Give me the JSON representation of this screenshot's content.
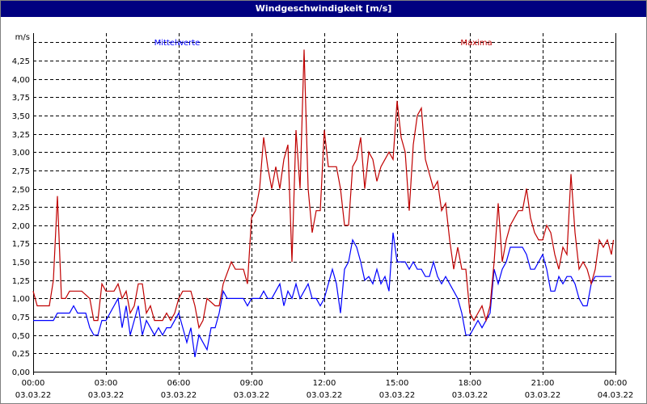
{
  "window": {
    "title": "Windgeschwindigkeit [m/s]"
  },
  "chart_data": {
    "type": "line",
    "title": "Windgeschwindigkeit [m/s]",
    "ylabel": "m/s",
    "ylim": [
      0,
      4.6
    ],
    "y_ticks": [
      "0,00",
      "0,25",
      "0,50",
      "0,75",
      "1,00",
      "1,25",
      "1,50",
      "1,75",
      "2,00",
      "2,25",
      "2,50",
      "2,75",
      "3,00",
      "3,25",
      "3,50",
      "3,75",
      "4,00",
      "4,25"
    ],
    "x_ticks": [
      {
        "time": "00:00",
        "date": "03.03.22"
      },
      {
        "time": "03:00",
        "date": "03.03.22"
      },
      {
        "time": "06:00",
        "date": "03.03.22"
      },
      {
        "time": "09:00",
        "date": "03.03.22"
      },
      {
        "time": "12:00",
        "date": "03.03.22"
      },
      {
        "time": "15:00",
        "date": "03.03.22"
      },
      {
        "time": "18:00",
        "date": "03.03.22"
      },
      {
        "time": "21:00",
        "date": "03.03.22"
      },
      {
        "time": "00:00",
        "date": "04.03.22"
      }
    ],
    "grid": true,
    "legend_placement": "top",
    "series": [
      {
        "name": "Mittelwerte",
        "color": "#0000ff",
        "points": [
          [
            "00:00",
            0.7
          ],
          [
            "00:50",
            0.7
          ],
          [
            "01:00",
            0.8
          ],
          [
            "01:30",
            0.8
          ],
          [
            "01:40",
            0.9
          ],
          [
            "01:50",
            0.8
          ],
          [
            "02:10",
            0.8
          ],
          [
            "02:20",
            0.6
          ],
          [
            "02:30",
            0.5
          ],
          [
            "02:40",
            0.5
          ],
          [
            "02:50",
            0.7
          ],
          [
            "03:00",
            0.7
          ],
          [
            "03:20",
            0.9
          ],
          [
            "03:30",
            1.0
          ],
          [
            "03:40",
            0.6
          ],
          [
            "03:50",
            0.9
          ],
          [
            "04:00",
            0.5
          ],
          [
            "04:10",
            0.7
          ],
          [
            "04:20",
            0.9
          ],
          [
            "04:30",
            0.5
          ],
          [
            "04:40",
            0.7
          ],
          [
            "04:50",
            0.6
          ],
          [
            "05:00",
            0.5
          ],
          [
            "05:10",
            0.6
          ],
          [
            "05:20",
            0.5
          ],
          [
            "05:30",
            0.6
          ],
          [
            "05:40",
            0.6
          ],
          [
            "05:50",
            0.7
          ],
          [
            "06:00",
            0.8
          ],
          [
            "06:10",
            0.6
          ],
          [
            "06:20",
            0.4
          ],
          [
            "06:30",
            0.6
          ],
          [
            "06:40",
            0.2
          ],
          [
            "06:50",
            0.5
          ],
          [
            "07:00",
            0.4
          ],
          [
            "07:10",
            0.3
          ],
          [
            "07:20",
            0.6
          ],
          [
            "07:30",
            0.6
          ],
          [
            "07:40",
            0.8
          ],
          [
            "07:50",
            1.1
          ],
          [
            "08:00",
            1.0
          ],
          [
            "08:40",
            1.0
          ],
          [
            "08:50",
            0.9
          ],
          [
            "09:00",
            1.0
          ],
          [
            "09:20",
            1.0
          ],
          [
            "09:30",
            1.1
          ],
          [
            "09:40",
            1.0
          ],
          [
            "09:50",
            1.0
          ],
          [
            "10:00",
            1.1
          ],
          [
            "10:10",
            1.2
          ],
          [
            "10:20",
            0.9
          ],
          [
            "10:30",
            1.1
          ],
          [
            "10:40",
            1.0
          ],
          [
            "10:50",
            1.2
          ],
          [
            "11:00",
            1.0
          ],
          [
            "11:10",
            1.1
          ],
          [
            "11:20",
            1.2
          ],
          [
            "11:30",
            1.0
          ],
          [
            "11:40",
            1.0
          ],
          [
            "11:50",
            0.9
          ],
          [
            "12:00",
            1.0
          ],
          [
            "12:10",
            1.2
          ],
          [
            "12:20",
            1.4
          ],
          [
            "12:30",
            1.2
          ],
          [
            "12:40",
            0.8
          ],
          [
            "12:50",
            1.4
          ],
          [
            "13:00",
            1.5
          ],
          [
            "13:10",
            1.8
          ],
          [
            "13:20",
            1.7
          ],
          [
            "13:30",
            1.5
          ],
          [
            "13:40",
            1.25
          ],
          [
            "13:50",
            1.3
          ],
          [
            "14:00",
            1.2
          ],
          [
            "14:10",
            1.4
          ],
          [
            "14:20",
            1.2
          ],
          [
            "14:30",
            1.3
          ],
          [
            "14:40",
            1.1
          ],
          [
            "14:50",
            1.9
          ],
          [
            "15:00",
            1.5
          ],
          [
            "15:20",
            1.5
          ],
          [
            "15:30",
            1.4
          ],
          [
            "15:40",
            1.5
          ],
          [
            "15:50",
            1.4
          ],
          [
            "16:00",
            1.4
          ],
          [
            "16:10",
            1.3
          ],
          [
            "16:20",
            1.3
          ],
          [
            "16:30",
            1.5
          ],
          [
            "16:40",
            1.3
          ],
          [
            "16:50",
            1.2
          ],
          [
            "17:00",
            1.3
          ],
          [
            "17:10",
            1.2
          ],
          [
            "17:20",
            1.1
          ],
          [
            "17:30",
            1.0
          ],
          [
            "17:40",
            0.8
          ],
          [
            "17:50",
            0.5
          ],
          [
            "18:00",
            0.5
          ],
          [
            "18:20",
            0.7
          ],
          [
            "18:30",
            0.6
          ],
          [
            "18:40",
            0.7
          ],
          [
            "18:50",
            0.8
          ],
          [
            "19:00",
            1.4
          ],
          [
            "19:10",
            1.2
          ],
          [
            "19:20",
            1.4
          ],
          [
            "19:30",
            1.5
          ],
          [
            "19:40",
            1.7
          ],
          [
            "20:10",
            1.7
          ],
          [
            "20:20",
            1.6
          ],
          [
            "20:30",
            1.4
          ],
          [
            "20:40",
            1.4
          ],
          [
            "20:50",
            1.5
          ],
          [
            "21:00",
            1.6
          ],
          [
            "21:10",
            1.4
          ],
          [
            "21:20",
            1.1
          ],
          [
            "21:30",
            1.1
          ],
          [
            "21:40",
            1.3
          ],
          [
            "21:50",
            1.2
          ],
          [
            "22:00",
            1.3
          ],
          [
            "22:10",
            1.3
          ],
          [
            "22:20",
            1.2
          ],
          [
            "22:30",
            1.0
          ],
          [
            "22:40",
            0.9
          ],
          [
            "22:50",
            0.9
          ],
          [
            "23:00",
            1.2
          ],
          [
            "23:10",
            1.3
          ],
          [
            "23:50",
            1.3
          ]
        ]
      },
      {
        "name": "Maxima",
        "color": "#c00000",
        "points": [
          [
            "00:00",
            1.1
          ],
          [
            "00:10",
            0.9
          ],
          [
            "00:40",
            0.9
          ],
          [
            "00:50",
            1.25
          ],
          [
            "01:00",
            2.4
          ],
          [
            "01:10",
            1.0
          ],
          [
            "01:20",
            1.0
          ],
          [
            "01:30",
            1.1
          ],
          [
            "02:00",
            1.1
          ],
          [
            "02:20",
            1.0
          ],
          [
            "02:30",
            0.7
          ],
          [
            "02:40",
            0.7
          ],
          [
            "02:50",
            1.2
          ],
          [
            "03:00",
            1.1
          ],
          [
            "03:20",
            1.1
          ],
          [
            "03:30",
            1.2
          ],
          [
            "03:40",
            1.0
          ],
          [
            "03:50",
            1.1
          ],
          [
            "04:00",
            0.8
          ],
          [
            "04:10",
            0.9
          ],
          [
            "04:20",
            1.2
          ],
          [
            "04:30",
            1.2
          ],
          [
            "04:40",
            0.8
          ],
          [
            "04:50",
            0.9
          ],
          [
            "05:00",
            0.7
          ],
          [
            "05:20",
            0.7
          ],
          [
            "05:30",
            0.8
          ],
          [
            "05:40",
            0.7
          ],
          [
            "05:50",
            0.8
          ],
          [
            "06:00",
            1.0
          ],
          [
            "06:10",
            1.1
          ],
          [
            "06:30",
            1.1
          ],
          [
            "06:40",
            0.9
          ],
          [
            "06:50",
            0.6
          ],
          [
            "07:00",
            0.7
          ],
          [
            "07:10",
            1.0
          ],
          [
            "07:30",
            0.9
          ],
          [
            "07:40",
            0.9
          ],
          [
            "07:50",
            1.2
          ],
          [
            "08:10",
            1.5
          ],
          [
            "08:20",
            1.4
          ],
          [
            "08:40",
            1.4
          ],
          [
            "08:50",
            1.2
          ],
          [
            "09:00",
            2.1
          ],
          [
            "09:10",
            2.2
          ],
          [
            "09:20",
            2.5
          ],
          [
            "09:30",
            3.2
          ],
          [
            "09:40",
            2.8
          ],
          [
            "09:50",
            2.5
          ],
          [
            "10:00",
            2.8
          ],
          [
            "10:10",
            2.5
          ],
          [
            "10:20",
            2.9
          ],
          [
            "10:30",
            3.1
          ],
          [
            "10:40",
            1.5
          ],
          [
            "10:50",
            3.3
          ],
          [
            "11:00",
            2.5
          ],
          [
            "11:10",
            4.4
          ],
          [
            "11:20",
            2.5
          ],
          [
            "11:30",
            1.9
          ],
          [
            "11:40",
            2.2
          ],
          [
            "11:50",
            2.2
          ],
          [
            "12:00",
            3.3
          ],
          [
            "12:10",
            2.8
          ],
          [
            "12:30",
            2.8
          ],
          [
            "12:40",
            2.5
          ],
          [
            "12:50",
            2.0
          ],
          [
            "13:00",
            2.0
          ],
          [
            "13:10",
            2.8
          ],
          [
            "13:20",
            2.9
          ],
          [
            "13:30",
            3.2
          ],
          [
            "13:40",
            2.5
          ],
          [
            "13:50",
            3.0
          ],
          [
            "14:00",
            2.9
          ],
          [
            "14:10",
            2.6
          ],
          [
            "14:20",
            2.8
          ],
          [
            "14:30",
            2.9
          ],
          [
            "14:40",
            3.0
          ],
          [
            "14:50",
            2.9
          ],
          [
            "15:00",
            3.7
          ],
          [
            "15:10",
            3.2
          ],
          [
            "15:20",
            3.0
          ],
          [
            "15:30",
            2.2
          ],
          [
            "15:40",
            3.1
          ],
          [
            "15:50",
            3.5
          ],
          [
            "16:00",
            3.6
          ],
          [
            "16:10",
            2.9
          ],
          [
            "16:20",
            2.7
          ],
          [
            "16:30",
            2.5
          ],
          [
            "16:40",
            2.6
          ],
          [
            "16:50",
            2.2
          ],
          [
            "17:00",
            2.3
          ],
          [
            "17:10",
            1.8
          ],
          [
            "17:20",
            1.4
          ],
          [
            "17:30",
            1.7
          ],
          [
            "17:40",
            1.4
          ],
          [
            "17:50",
            1.4
          ],
          [
            "18:00",
            0.8
          ],
          [
            "18:10",
            0.7
          ],
          [
            "18:20",
            0.8
          ],
          [
            "18:30",
            0.9
          ],
          [
            "18:40",
            0.7
          ],
          [
            "18:50",
            0.9
          ],
          [
            "19:00",
            1.5
          ],
          [
            "19:10",
            2.3
          ],
          [
            "19:20",
            1.5
          ],
          [
            "19:30",
            1.8
          ],
          [
            "19:40",
            2.0
          ],
          [
            "19:50",
            2.1
          ],
          [
            "20:00",
            2.2
          ],
          [
            "20:10",
            2.2
          ],
          [
            "20:20",
            2.5
          ],
          [
            "20:30",
            2.1
          ],
          [
            "20:40",
            1.9
          ],
          [
            "20:50",
            1.8
          ],
          [
            "21:00",
            1.8
          ],
          [
            "21:10",
            2.0
          ],
          [
            "21:20",
            1.9
          ],
          [
            "21:30",
            1.6
          ],
          [
            "21:40",
            1.4
          ],
          [
            "21:50",
            1.7
          ],
          [
            "22:00",
            1.6
          ],
          [
            "22:10",
            2.7
          ],
          [
            "22:20",
            1.9
          ],
          [
            "22:30",
            1.4
          ],
          [
            "22:40",
            1.5
          ],
          [
            "22:50",
            1.4
          ],
          [
            "23:00",
            1.2
          ],
          [
            "23:10",
            1.4
          ],
          [
            "23:20",
            1.8
          ],
          [
            "23:30",
            1.7
          ],
          [
            "23:40",
            1.8
          ],
          [
            "23:50",
            1.6
          ],
          [
            "23:55",
            1.8
          ]
        ]
      }
    ]
  }
}
